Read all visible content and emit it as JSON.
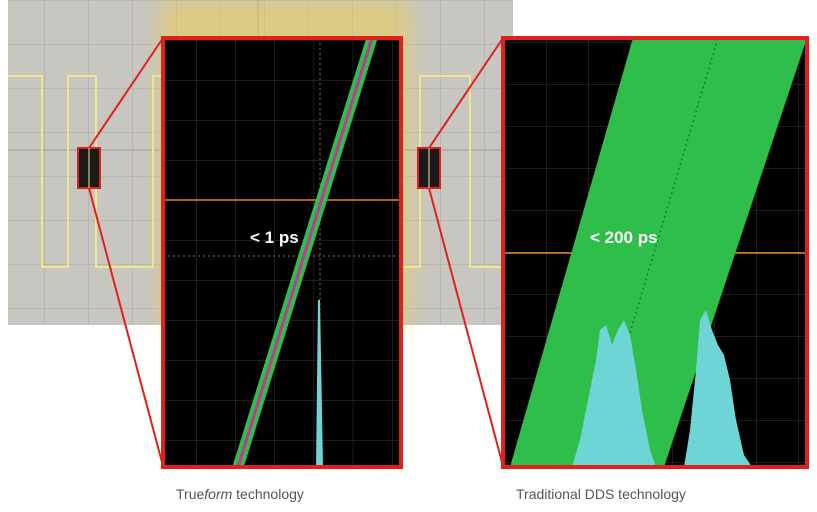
{
  "left_panel": {
    "measurement": "< 1 ps",
    "caption_prefix": "True",
    "caption_italic": "form",
    "caption_suffix": " technology"
  },
  "right_panel": {
    "measurement": "< 200 ps",
    "caption": "Traditional DDS technology"
  },
  "colors": {
    "scope_background": "#c7c6c0",
    "glow": "#f5d23a",
    "waveform": "#f2e58a",
    "zoom_frame": "#e0201b",
    "trace_green": "#2fbe4a",
    "trace_magenta": "#c0389a",
    "histogram": "#6fd4d6",
    "marker_orange": "#e58a1a"
  }
}
